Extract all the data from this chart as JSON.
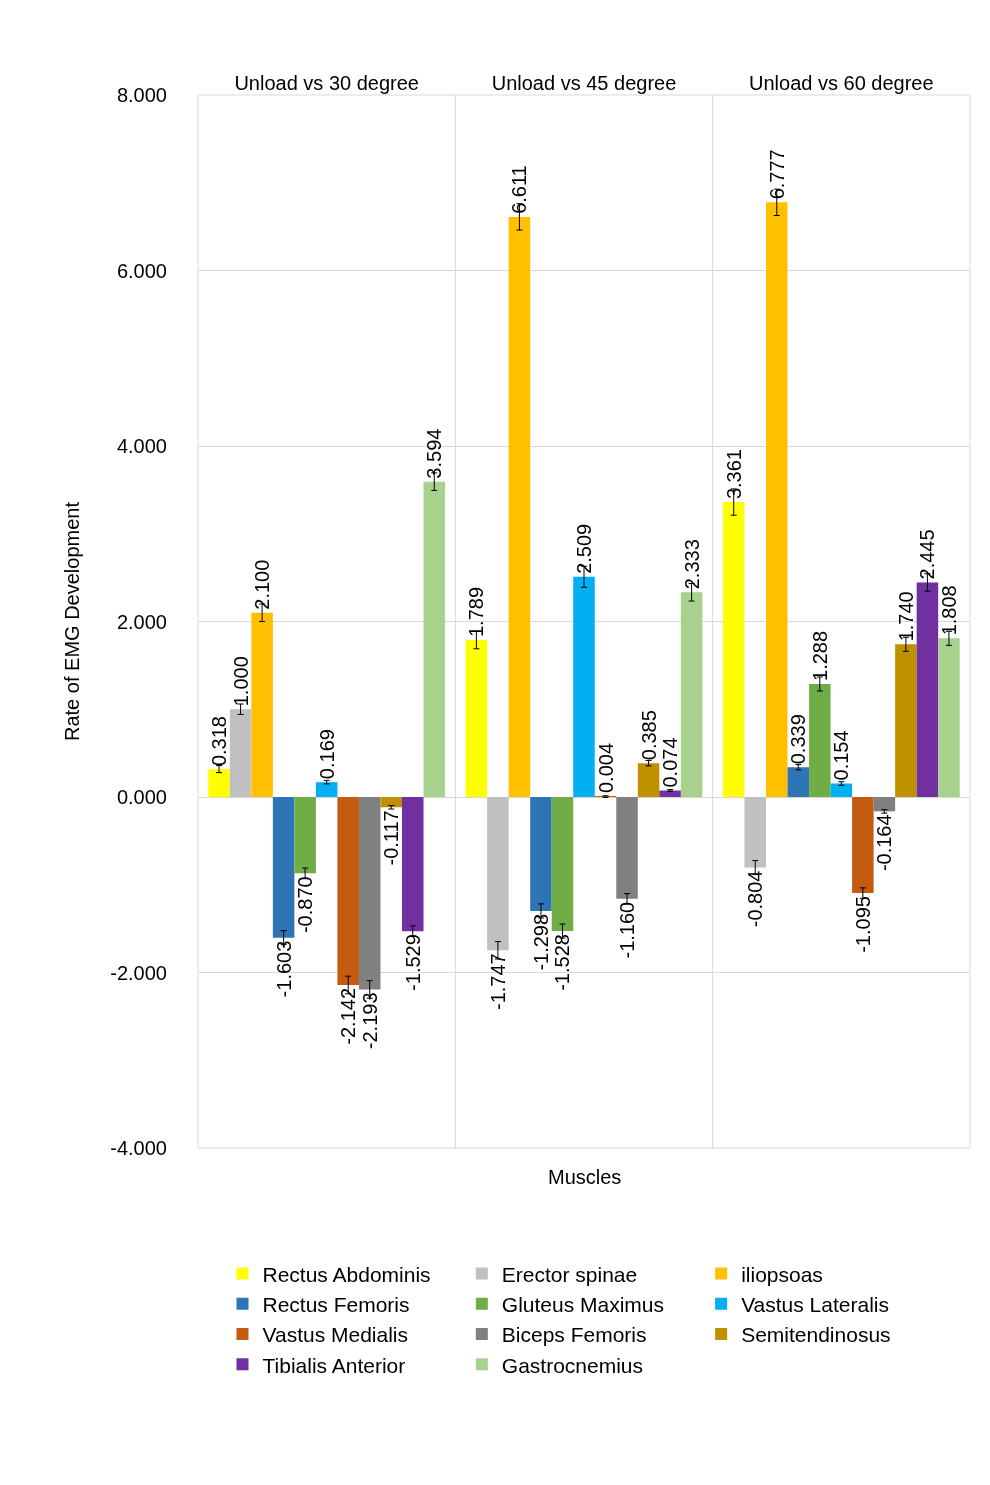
{
  "chart_data": {
    "type": "bar",
    "xlabel": "Muscles",
    "ylabel": "Rate of EMG Development",
    "categories": [
      "Unload vs 30 degree",
      "Unload vs 45 degree",
      "Unload vs 60 degree"
    ],
    "ylim": [
      -4,
      8
    ],
    "yticks": [
      {
        "value": -4,
        "label": "-4.000"
      },
      {
        "value": -2,
        "label": "-2.000"
      },
      {
        "value": 0,
        "label": "0.000"
      },
      {
        "value": 2,
        "label": "2.000"
      },
      {
        "value": 4,
        "label": "4.000"
      },
      {
        "value": 6,
        "label": "6.000"
      },
      {
        "value": 8,
        "label": "8.000"
      }
    ],
    "grid": true,
    "legend": "bottom",
    "series": [
      {
        "name": "Rectus Abdominis",
        "color": "#ffff00",
        "values": [
          0.318,
          1.789,
          3.361
        ],
        "value_labels": [
          "0.318",
          "1.789",
          "3.361"
        ],
        "errors": [
          0.04,
          0.1,
          0.15
        ]
      },
      {
        "name": "Erector spinae",
        "color": "#c0c0c0",
        "values": [
          1.0,
          -1.747,
          -0.804
        ],
        "value_labels": [
          "1.000",
          "-1.747",
          "-0.804"
        ],
        "errors": [
          0.06,
          0.1,
          0.08
        ]
      },
      {
        "name": "iliopsoas",
        "color": "#ffc000",
        "values": [
          2.1,
          6.611,
          6.777
        ],
        "value_labels": [
          "2.100",
          "6.611",
          "6.777"
        ],
        "errors": [
          0.1,
          0.15,
          0.15
        ]
      },
      {
        "name": "Rectus Femoris",
        "color": "#2e75b6",
        "values": [
          -1.603,
          -1.298,
          0.339
        ],
        "value_labels": [
          "-1.603",
          "-1.298",
          "0.339"
        ],
        "errors": [
          0.08,
          0.08,
          0.03
        ]
      },
      {
        "name": "Gluteus Maximus",
        "color": "#70ad47",
        "values": [
          -0.87,
          -1.528,
          1.288
        ],
        "value_labels": [
          "-0.870",
          "-1.528",
          "1.288"
        ],
        "errors": [
          0.06,
          0.08,
          0.08
        ]
      },
      {
        "name": "Vastus Lateralis",
        "color": "#00b0f0",
        "values": [
          0.169,
          2.509,
          0.154
        ],
        "value_labels": [
          "0.169",
          "2.509",
          "0.154"
        ],
        "errors": [
          0.02,
          0.12,
          0.02
        ]
      },
      {
        "name": "Vastus Medialis",
        "color": "#c55a11",
        "values": [
          -2.142,
          0.004,
          -1.095
        ],
        "value_labels": [
          "-2.142",
          "0.004",
          "-1.095"
        ],
        "errors": [
          0.1,
          0.01,
          0.06
        ]
      },
      {
        "name": "Biceps Femoris",
        "color": "#808080",
        "values": [
          -2.193,
          -1.16,
          -0.164
        ],
        "value_labels": [
          "-2.193",
          "-1.160",
          "-0.164"
        ],
        "errors": [
          0.1,
          0.06,
          0.02
        ]
      },
      {
        "name": "Semitendinosus",
        "color": "#bf9000",
        "values": [
          -0.117,
          0.385,
          1.74
        ],
        "value_labels": [
          "-0.117",
          "0.385",
          "1.740"
        ],
        "errors": [
          0.02,
          0.03,
          0.08
        ]
      },
      {
        "name": "Tibialis Anterior",
        "color": "#7030a0",
        "values": [
          -1.529,
          0.074,
          2.445
        ],
        "value_labels": [
          "-1.529",
          "0.074",
          "2.445"
        ],
        "errors": [
          0.06,
          0.01,
          0.1
        ]
      },
      {
        "name": "Gastrocnemius",
        "color": "#a9d18e",
        "values": [
          3.594,
          2.333,
          1.808
        ],
        "value_labels": [
          "3.594",
          "2.333",
          "1.808"
        ],
        "errors": [
          0.1,
          0.1,
          0.08
        ]
      }
    ]
  }
}
